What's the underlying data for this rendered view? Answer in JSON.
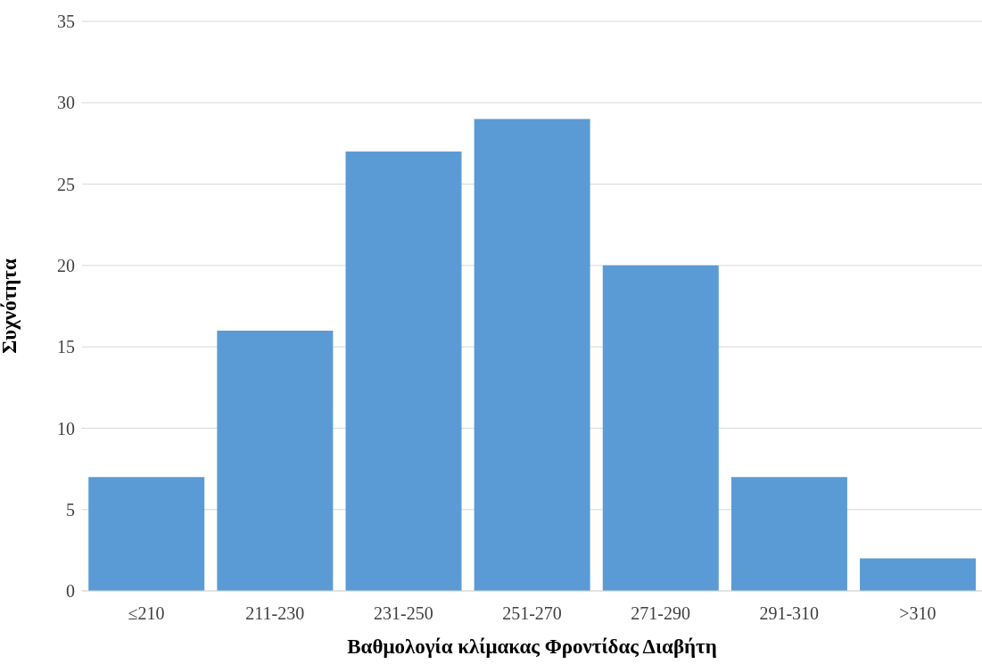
{
  "chart_data": {
    "type": "bar",
    "xlabel": "Βαθμολογία κλίμακας Φροντίδας Διαβήτη",
    "ylabel": "Συχνότητα",
    "categories": [
      "≤210",
      "211-230",
      "231-250",
      "251-270",
      "271-290",
      "291-310",
      ">310"
    ],
    "values": [
      7,
      16,
      27,
      29,
      20,
      7,
      2
    ],
    "color": "#5b9bd5",
    "ylim": [
      0,
      35
    ],
    "yticks": [
      0,
      5,
      10,
      15,
      20,
      25,
      30,
      35
    ],
    "grid": "y"
  }
}
